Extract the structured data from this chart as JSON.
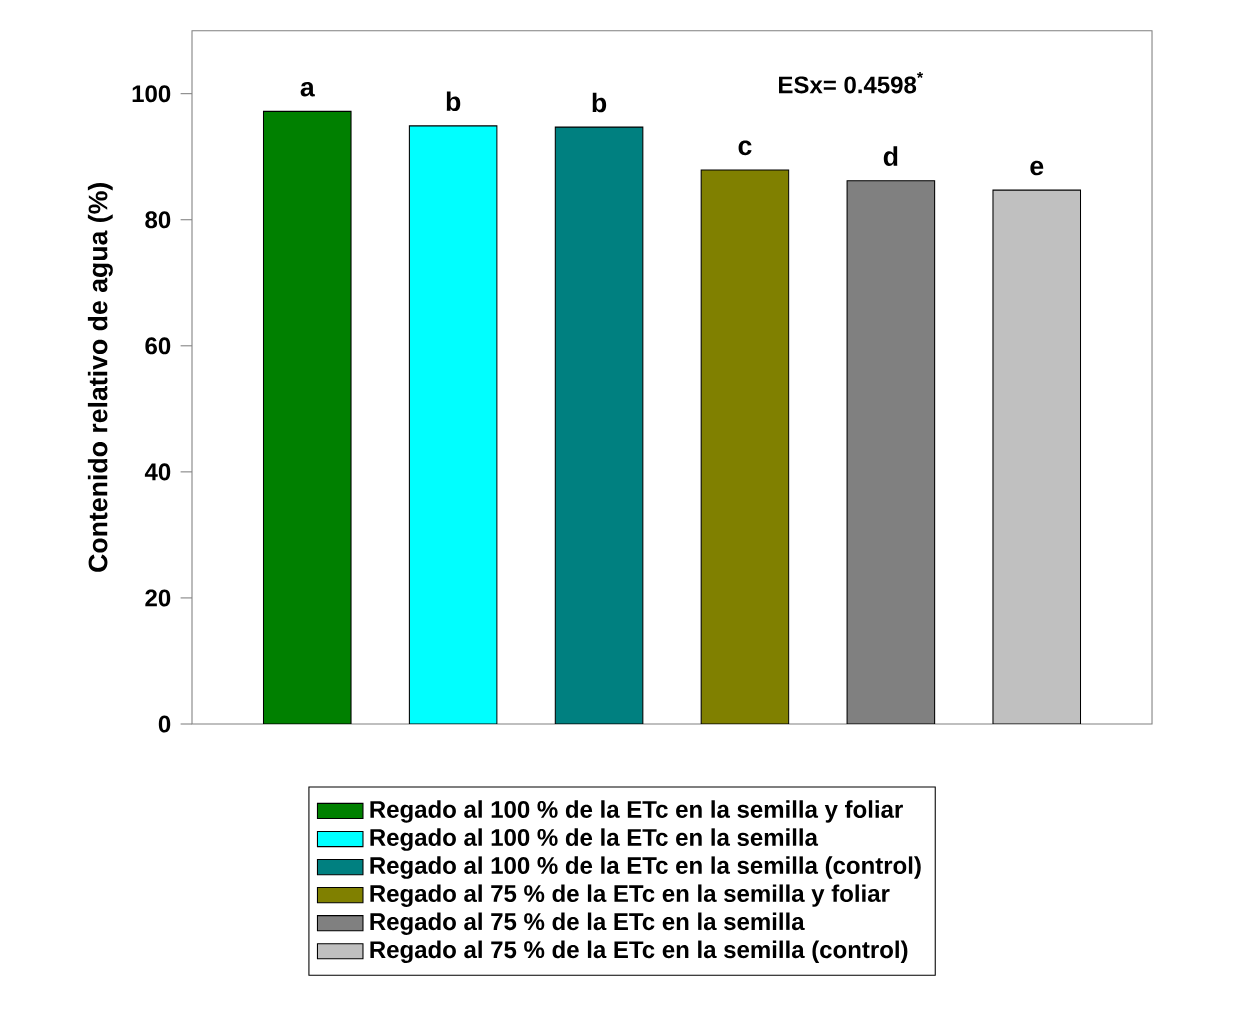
{
  "chart_data": {
    "type": "bar",
    "ylabel": "Contenido relativo de agua (%)",
    "categories": [
      null,
      null,
      null,
      null,
      null,
      null
    ],
    "series": [
      {
        "name": "Regado al 100 % de la ETc en la semilla y foliar",
        "color": "#008000",
        "values": [
          97.2,
          null,
          null,
          null,
          null,
          null
        ],
        "value_labels": [
          "a",
          null,
          null,
          null,
          null,
          null
        ]
      },
      {
        "name": "Regado al 100 % de la ETc en la semilla",
        "color": "#00ffff",
        "values": [
          null,
          94.9,
          null,
          null,
          null,
          null
        ],
        "value_labels": [
          null,
          "b",
          null,
          null,
          null,
          null
        ]
      },
      {
        "name": "Regado al 100 % de la ETc en la semilla (control)",
        "color": "#008080",
        "values": [
          null,
          null,
          94.7,
          null,
          null,
          null
        ],
        "value_labels": [
          null,
          null,
          "b",
          null,
          null,
          null
        ]
      },
      {
        "name": "Regado al 75 % de la ETc en la semilla y foliar",
        "color": "#808000",
        "values": [
          null,
          null,
          null,
          87.9,
          null,
          null
        ],
        "value_labels": [
          null,
          null,
          null,
          "c",
          null,
          null
        ]
      },
      {
        "name": "Regado al 75 % de la ETc en la semilla",
        "color": "#808080",
        "values": [
          null,
          null,
          null,
          null,
          86.2,
          null
        ],
        "value_labels": [
          null,
          null,
          null,
          null,
          "d",
          null
        ]
      },
      {
        "name": "Regado al 75 % de la ETc en la semilla (control)",
        "color": "#c0c0c0",
        "values": [
          null,
          null,
          null,
          null,
          null,
          84.7
        ],
        "value_labels": [
          null,
          null,
          null,
          null,
          null,
          "e"
        ]
      }
    ],
    "annotations": [
      "ESx= 0.4598$^{*}$"
    ],
    "ylim": [
      0,
      110
    ],
    "yticks": [
      0,
      20,
      40,
      60,
      80,
      100
    ],
    "stacked": true,
    "tick_labels": "y",
    "grid": false,
    "legend": "bottom"
  }
}
